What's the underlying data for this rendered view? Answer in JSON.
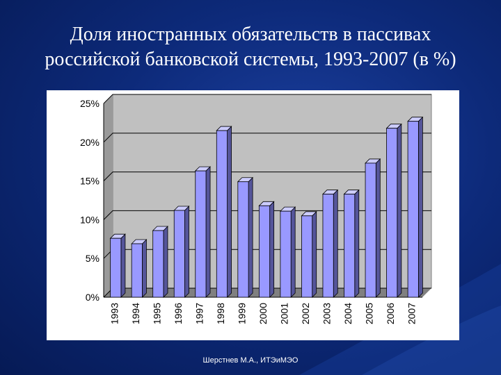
{
  "slide": {
    "title_line1": "Доля иностранных обязательств в пассивах",
    "title_line2": "российской банковской системы, 1993-2007 (в %)",
    "footer": "Шерстнев М.А., ИТЭиМЭО"
  },
  "colors": {
    "background": "#0d2a7a",
    "plot_area": "#c0c0c0",
    "bar_front": "#9999ff",
    "bar_side": "#55559a",
    "bar_top": "#ccccff"
  },
  "chart_data": {
    "type": "bar",
    "categories": [
      "1993",
      "1994",
      "1995",
      "1996",
      "1997",
      "1998",
      "1999",
      "2000",
      "2001",
      "2002",
      "2003",
      "2004",
      "2005",
      "2006",
      "2007"
    ],
    "values": [
      7.6,
      6.9,
      8.6,
      11.2,
      16.3,
      21.5,
      14.9,
      11.8,
      11.1,
      10.5,
      13.3,
      13.3,
      17.3,
      21.8,
      22.7
    ],
    "ylim": [
      0,
      25
    ],
    "yticks": [
      "0%",
      "5%",
      "10%",
      "15%",
      "20%",
      "25%"
    ],
    "grid": true,
    "legend": "none"
  }
}
